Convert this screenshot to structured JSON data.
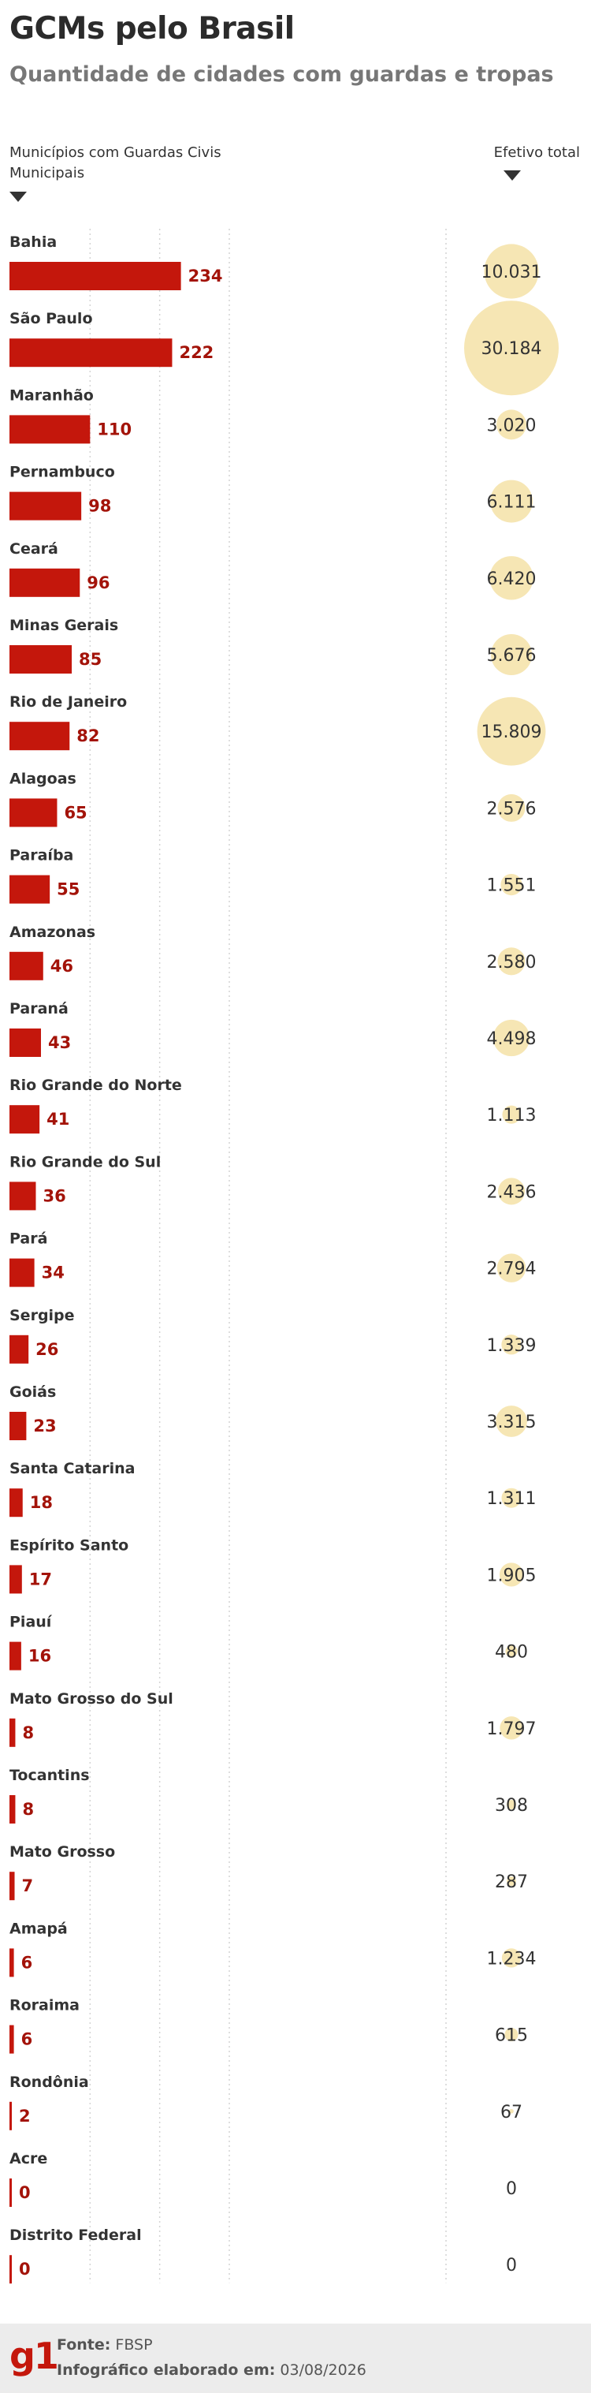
{
  "header": {
    "title": "GCMs pelo Brasil",
    "subtitle": "Quantidade de cidades com guardas e tropas",
    "left_column_label": "Municípios com Guardas Civis Municipais",
    "right_column_label": "Efetivo total"
  },
  "colors": {
    "bar": "#c4170c",
    "bubble": "#f6e6b4",
    "label_dark": "#333333",
    "value_red": "#a31309"
  },
  "chart_data": {
    "type": "bar",
    "orientation": "horizontal",
    "title": "GCMs pelo Brasil",
    "subtitle": "Quantidade de cidades com guardas e tropas",
    "grid": true,
    "categories": [
      "Bahia",
      "São Paulo",
      "Maranhão",
      "Pernambuco",
      "Ceará",
      "Minas Gerais",
      "Rio de Janeiro",
      "Alagoas",
      "Paraíba",
      "Amazonas",
      "Paraná",
      "Rio Grande do Norte",
      "Rio Grande do Sul",
      "Pará",
      "Sergipe",
      "Goiás",
      "Santa Catarina",
      "Espírito Santo",
      "Piauí",
      "Mato Grosso do Sul",
      "Tocantins",
      "Mato Grosso",
      "Amapá",
      "Roraima",
      "Rondônia",
      "Acre",
      "Distrito Federal"
    ],
    "series": [
      {
        "name": "Municípios com Guardas Civis Municipais",
        "values": [
          234,
          222,
          110,
          98,
          96,
          85,
          82,
          65,
          55,
          46,
          43,
          41,
          36,
          34,
          26,
          23,
          18,
          17,
          16,
          8,
          8,
          7,
          6,
          6,
          2,
          0,
          0
        ]
      },
      {
        "name": "Efetivo total",
        "values": [
          10031,
          30184,
          3020,
          6111,
          6420,
          5676,
          15809,
          2576,
          1551,
          2580,
          4498,
          1113,
          2436,
          2794,
          1339,
          3315,
          1311,
          1905,
          480,
          1797,
          308,
          287,
          1234,
          615,
          67,
          0,
          0
        ],
        "labels": [
          "10.031",
          "30.184",
          "3.020",
          "6.111",
          "6.420",
          "5.676",
          "15.809",
          "2.576",
          "1.551",
          "2.580",
          "4.498",
          "1.113",
          "2.436",
          "2.794",
          "1.339",
          "3.315",
          "1.311",
          "1.905",
          "480",
          "1.797",
          "308",
          "287",
          "1.234",
          "615",
          "67",
          "0",
          "0"
        ]
      }
    ]
  },
  "footer": {
    "logo": "g1",
    "source_label": "Fonte:",
    "source_value": "FBSP",
    "date_label": "Infográfico elaborado em:",
    "date_value": "03/08/2026"
  }
}
